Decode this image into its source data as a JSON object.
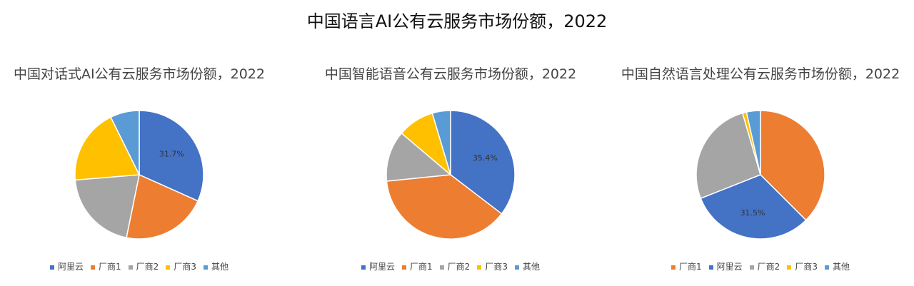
{
  "title": "中国语言AI公有云服务市场份额，2022",
  "colors": {
    "阿里云": "#4472C4",
    "厂商1": "#ED7D31",
    "厂商2": "#A5A5A5",
    "厂商3": "#FFC000",
    "其他": "#5B9BD5"
  },
  "chart_data": [
    {
      "type": "pie",
      "title": "中国对话式AI公有云服务市场份额，2022",
      "slices": [
        {
          "name": "阿里云",
          "value": 31.7,
          "label": "31.7%"
        },
        {
          "name": "厂商1",
          "value": 21.5
        },
        {
          "name": "厂商2",
          "value": 20.5
        },
        {
          "name": "厂商3",
          "value": 19.0
        },
        {
          "name": "其他",
          "value": 7.3
        }
      ]
    },
    {
      "type": "pie",
      "title": "中国智能语音公有云服务市场份额，2022",
      "slices": [
        {
          "name": "阿里云",
          "value": 35.4,
          "label": "35.4%"
        },
        {
          "name": "厂商1",
          "value": 38.0
        },
        {
          "name": "厂商2",
          "value": 12.8
        },
        {
          "name": "厂商3",
          "value": 9.2
        },
        {
          "name": "其他",
          "value": 4.6
        }
      ]
    },
    {
      "type": "pie",
      "title": "中国自然语言处理公有云服务市场份额，2022",
      "slices": [
        {
          "name": "厂商1",
          "value": 37.5
        },
        {
          "name": "阿里云",
          "value": 31.5,
          "label": "31.5%"
        },
        {
          "name": "厂商2",
          "value": 26.5
        },
        {
          "name": "厂商3",
          "value": 1.0
        },
        {
          "name": "其他",
          "value": 3.5
        }
      ]
    }
  ]
}
